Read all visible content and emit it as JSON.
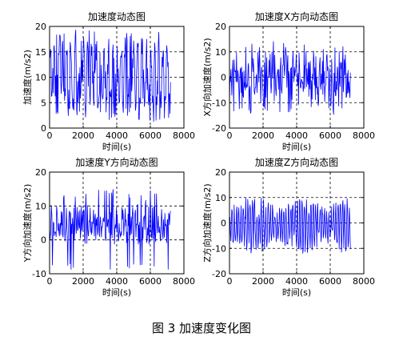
{
  "caption": "图 3  加速度变化图",
  "colors": {
    "line": "#0000ff",
    "axes": "#000000",
    "background": "#ffffff"
  },
  "chart_data": [
    {
      "type": "line",
      "title": "加速度动态图",
      "xlabel": "时间(s)",
      "ylabel": "加速度(m/s2)",
      "xlim": [
        0,
        8000
      ],
      "ylim": [
        0,
        20
      ],
      "xticks": [
        0,
        2000,
        4000,
        6000,
        8000
      ],
      "yticks": [
        0,
        5,
        10,
        15,
        20
      ],
      "grid": true,
      "series_id": 0,
      "x_range": [
        0,
        7200
      ],
      "points": 260,
      "series": [
        {
          "color": "#0000ff"
        }
      ]
    },
    {
      "type": "line",
      "title": "加速度X方向动态图",
      "xlabel": "时间(s)",
      "ylabel": "X方向加速度(m/s2)",
      "xlim": [
        0,
        8000
      ],
      "ylim": [
        -20,
        20
      ],
      "xticks": [
        0,
        2000,
        4000,
        6000,
        8000
      ],
      "yticks": [
        -20,
        -10,
        0,
        10,
        20
      ],
      "grid": true,
      "series_id": 1,
      "x_range": [
        0,
        7200
      ],
      "points": 260,
      "series": [
        {
          "color": "#0000ff"
        }
      ]
    },
    {
      "type": "line",
      "title": "加速度Y方向动态图",
      "xlabel": "时间(s)",
      "ylabel": "Y方向加速度(m/s2)",
      "xlim": [
        0,
        8000
      ],
      "ylim": [
        -10,
        20
      ],
      "xticks": [
        0,
        2000,
        4000,
        6000,
        8000
      ],
      "yticks": [
        -10,
        0,
        10,
        20
      ],
      "grid": true,
      "series_id": 2,
      "x_range": [
        0,
        7200
      ],
      "points": 260,
      "series": [
        {
          "color": "#0000ff"
        }
      ]
    },
    {
      "type": "line",
      "title": "加速度Z方向动态图",
      "xlabel": "时间(s)",
      "ylabel": "Z方向加速度(m/s2)",
      "xlim": [
        0,
        8000
      ],
      "ylim": [
        -20,
        20
      ],
      "xticks": [
        0,
        2000,
        4000,
        6000,
        8000
      ],
      "yticks": [
        -20,
        -10,
        0,
        10,
        20
      ],
      "grid": true,
      "series_id": 3,
      "x_range": [
        0,
        7200
      ],
      "points": 260,
      "series": [
        {
          "color": "#0000ff"
        }
      ]
    }
  ]
}
